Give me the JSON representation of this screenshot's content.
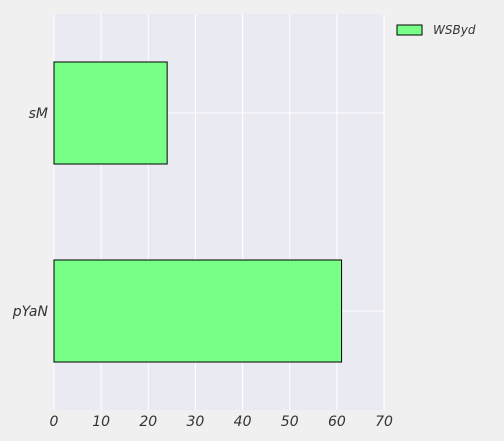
{
  "chart_data": {
    "type": "bar",
    "orientation": "horizontal",
    "categories": [
      "sM",
      "pYaN"
    ],
    "series": [
      {
        "name": "WSByd",
        "values": [
          24,
          61
        ]
      }
    ],
    "title": "",
    "xlabel": "",
    "ylabel": "",
    "xlim": [
      0,
      70
    ],
    "xticks": [
      "0",
      "10",
      "20",
      "30",
      "40",
      "50",
      "60",
      "70"
    ],
    "grid": true,
    "legend": "top-right",
    "colors": {
      "bar_fill": "#77ff88",
      "bar_edge": "#000000",
      "plot_bg": "#eaeaf2",
      "grid": "#ffffff",
      "page_bg": "#f0f0f0"
    }
  }
}
